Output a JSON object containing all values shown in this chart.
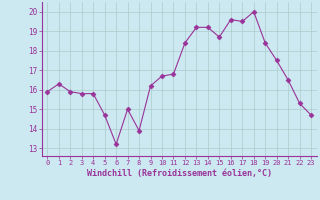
{
  "x": [
    0,
    1,
    2,
    3,
    4,
    5,
    6,
    7,
    8,
    9,
    10,
    11,
    12,
    13,
    14,
    15,
    16,
    17,
    18,
    19,
    20,
    21,
    22,
    23
  ],
  "y": [
    15.9,
    16.3,
    15.9,
    15.8,
    15.8,
    14.7,
    13.2,
    15.0,
    13.9,
    16.2,
    16.7,
    16.8,
    18.4,
    19.2,
    19.2,
    18.7,
    19.6,
    19.5,
    20.0,
    18.4,
    17.5,
    16.5,
    15.3,
    14.7
  ],
  "line_color": "#993399",
  "marker": "D",
  "marker_size": 2.5,
  "bg_color": "#cce8f0",
  "grid_color": "#aacccc",
  "ylabel_ticks": [
    13,
    14,
    15,
    16,
    17,
    18,
    19,
    20
  ],
  "xlabel": "Windchill (Refroidissement éolien,°C)",
  "xlabel_color": "#993399",
  "tick_color": "#993399",
  "ylim": [
    12.6,
    20.5
  ],
  "xlim": [
    -0.5,
    23.5
  ],
  "xtick_fontsize": 5.0,
  "ytick_fontsize": 5.5,
  "xlabel_fontsize": 6.0
}
